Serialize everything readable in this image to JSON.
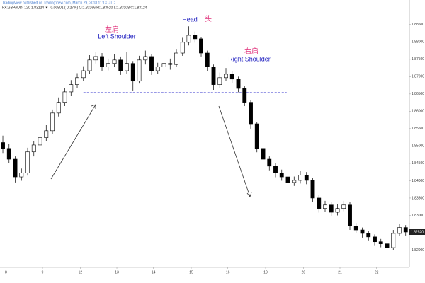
{
  "chart_data": {
    "type": "candlestick",
    "header": {
      "publisher": "TradingView published on TradingView.com, March 29, 2018 11:13 UTC",
      "symbol": "FX:GBPAUD, 120 1.83124 ▼ -0.00501 (-0.27%) O:1.83266 H:1.83520 L:1.83108 C:1.83124"
    },
    "annotations": {
      "head_en": "Head",
      "head_cn": "头",
      "left_cn": "左肩",
      "left_en": "Left Shoulder",
      "right_cn": "右肩",
      "right_en": "Right Shoulder"
    },
    "up_color": "#ffffff",
    "down_color": "#000000",
    "neckline_color": "#3333cc",
    "neckline": {
      "value": 1.8654,
      "x": [
        13,
        45.8
      ]
    },
    "last_price_label": "1.82520",
    "xlim": [
      -0.46,
      65.6
    ],
    "xticks": [
      {
        "value": 0.5,
        "label": "8"
      },
      {
        "value": 6.4,
        "label": "9"
      },
      {
        "value": 12.5,
        "label": "12"
      },
      {
        "value": 18.4,
        "label": "13"
      },
      {
        "value": 24.3,
        "label": "14"
      },
      {
        "value": 30.4,
        "label": "15"
      },
      {
        "value": 36.3,
        "label": "16"
      },
      {
        "value": 42.4,
        "label": "19"
      },
      {
        "value": 48.5,
        "label": "20"
      },
      {
        "value": 54.4,
        "label": "21"
      },
      {
        "value": 60.3,
        "label": "22"
      }
    ],
    "ylim": [
      1.815,
      1.8921
    ],
    "yticks": [
      {
        "value": 1.82,
        "label": "1.82000"
      },
      {
        "value": 1.825,
        "label": "1.82500"
      },
      {
        "value": 1.83,
        "label": "1.83000"
      },
      {
        "value": 1.835,
        "label": "1.83500"
      },
      {
        "value": 1.84,
        "label": "1.84000"
      },
      {
        "value": 1.845,
        "label": "1.84500"
      },
      {
        "value": 1.85,
        "label": "1.85000"
      },
      {
        "value": 1.855,
        "label": "1.85500"
      },
      {
        "value": 1.86,
        "label": "1.86000"
      },
      {
        "value": 1.865,
        "label": "1.86500"
      },
      {
        "value": 1.87,
        "label": "1.87000"
      },
      {
        "value": 1.875,
        "label": "1.87500"
      },
      {
        "value": 1.88,
        "label": "1.88000"
      },
      {
        "value": 1.885,
        "label": "1.88500"
      }
    ],
    "open": [
      1.851,
      1.8493,
      1.8462,
      1.8411,
      1.8422,
      1.8483,
      1.8503,
      1.8524,
      1.8544,
      1.8595,
      1.8626,
      1.8656,
      1.8677,
      1.8697,
      1.8717,
      1.8748,
      1.8758,
      1.8728,
      1.8738,
      1.8748,
      1.8717,
      1.8738,
      1.8687,
      1.8748,
      1.8758,
      1.8717,
      1.8728,
      1.8738,
      1.8735,
      1.8768,
      1.8799,
      1.8819,
      1.8809,
      1.8768,
      1.8728,
      1.8677,
      1.8697,
      1.8707,
      1.8693,
      1.8666,
      1.8626,
      1.8564,
      1.8493,
      1.8462,
      1.8442,
      1.8422,
      1.8411,
      1.8395,
      1.8401,
      1.8416,
      1.8401,
      1.835,
      1.832,
      1.833,
      1.8309,
      1.832,
      1.833,
      1.8269,
      1.8258,
      1.8248,
      1.8238,
      1.8224,
      1.8218,
      1.8207,
      1.8248,
      1.8265
    ],
    "high": [
      1.853,
      1.8505,
      1.847,
      1.8435,
      1.8495,
      1.8515,
      1.8535,
      1.856,
      1.8605,
      1.864,
      1.8668,
      1.869,
      1.871,
      1.873,
      1.8762,
      1.8772,
      1.8768,
      1.8752,
      1.8765,
      1.8758,
      1.877,
      1.8745,
      1.876,
      1.8775,
      1.8765,
      1.874,
      1.875,
      1.8752,
      1.878,
      1.8812,
      1.8845,
      1.883,
      1.8815,
      1.8775,
      1.8735,
      1.8712,
      1.8725,
      1.8715,
      1.87,
      1.8672,
      1.8632,
      1.857,
      1.85,
      1.847,
      1.845,
      1.8432,
      1.842,
      1.8412,
      1.8428,
      1.8425,
      1.8408,
      1.8358,
      1.8342,
      1.8338,
      1.8332,
      1.8342,
      1.8338,
      1.8278,
      1.8265,
      1.8256,
      1.8245,
      1.8232,
      1.8225,
      1.8258,
      1.8275,
      1.8272
    ],
    "low": [
      1.848,
      1.845,
      1.8395,
      1.84,
      1.8415,
      1.847,
      1.8495,
      1.8515,
      1.8535,
      1.8585,
      1.8615,
      1.8645,
      1.8668,
      1.8688,
      1.8708,
      1.8738,
      1.8715,
      1.8718,
      1.8728,
      1.8705,
      1.8708,
      1.866,
      1.868,
      1.8735,
      1.8705,
      1.8708,
      1.8718,
      1.872,
      1.8728,
      1.876,
      1.879,
      1.8798,
      1.8758,
      1.8715,
      1.8662,
      1.8668,
      1.8688,
      1.8682,
      1.8655,
      1.8615,
      1.855,
      1.8482,
      1.845,
      1.843,
      1.841,
      1.84,
      1.8385,
      1.8385,
      1.8392,
      1.839,
      1.8338,
      1.8308,
      1.831,
      1.8298,
      1.83,
      1.8312,
      1.8258,
      1.8248,
      1.8236,
      1.8228,
      1.8214,
      1.8208,
      1.8198,
      1.82,
      1.824,
      1.8242
    ],
    "close": [
      1.8493,
      1.8462,
      1.8411,
      1.8422,
      1.8483,
      1.8503,
      1.8524,
      1.8544,
      1.8595,
      1.8626,
      1.8656,
      1.8677,
      1.8697,
      1.8717,
      1.8748,
      1.8758,
      1.8728,
      1.8738,
      1.8748,
      1.8717,
      1.8738,
      1.8687,
      1.8748,
      1.8758,
      1.8717,
      1.8728,
      1.8738,
      1.8735,
      1.8768,
      1.8799,
      1.8819,
      1.8809,
      1.8768,
      1.8728,
      1.8677,
      1.8697,
      1.8707,
      1.8693,
      1.8666,
      1.8626,
      1.8564,
      1.8493,
      1.8462,
      1.8442,
      1.8422,
      1.8411,
      1.8395,
      1.8401,
      1.8416,
      1.8401,
      1.835,
      1.832,
      1.833,
      1.8309,
      1.832,
      1.833,
      1.8269,
      1.8258,
      1.8248,
      1.8238,
      1.8224,
      1.8218,
      1.8207,
      1.8248,
      1.8265,
      1.8252
    ]
  }
}
